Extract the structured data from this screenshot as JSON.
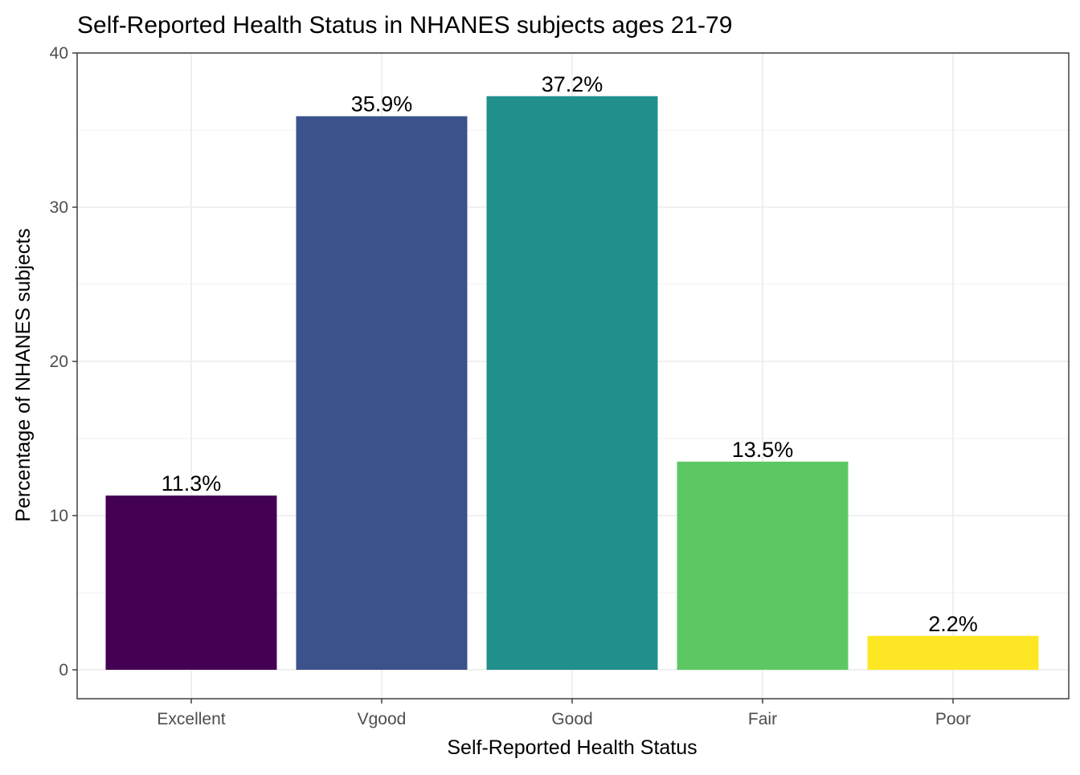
{
  "chart_data": {
    "type": "bar",
    "title": "Self-Reported Health Status in NHANES subjects ages 21-79",
    "xlabel": "Self-Reported Health Status",
    "ylabel": "Percentage of NHANES subjects",
    "categories": [
      "Excellent",
      "Vgood",
      "Good",
      "Fair",
      "Poor"
    ],
    "values": [
      11.3,
      35.9,
      37.2,
      13.5,
      2.2
    ],
    "data_labels": [
      "11.3%",
      "35.9%",
      "37.2%",
      "13.5%",
      "2.2%"
    ],
    "colors": [
      "#440154",
      "#3b528b",
      "#21908c",
      "#5dc863",
      "#fde725"
    ],
    "ylim": [
      0,
      40
    ],
    "yticks": [
      0,
      10,
      20,
      30,
      40
    ],
    "grid": true,
    "legend": "none"
  }
}
